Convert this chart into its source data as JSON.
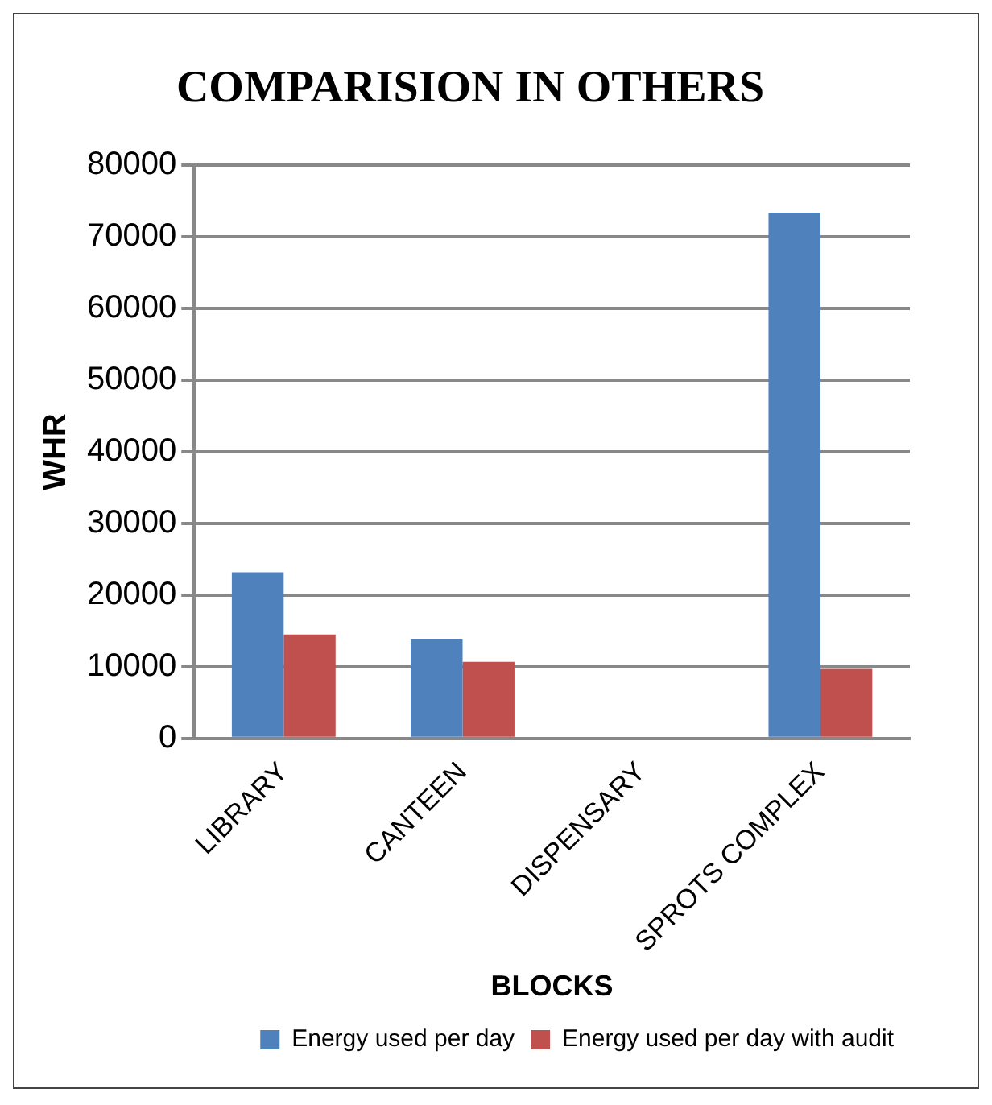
{
  "chart_data": {
    "type": "bar",
    "title": "COMPARISION IN OTHERS",
    "xlabel": "BLOCKS",
    "ylabel": "WHR",
    "categories": [
      "LIBRARY",
      "CANTEEN",
      "DISPENSARY",
      "SPROTS COMPLEX"
    ],
    "series": [
      {
        "name": "Energy used per day",
        "color": "#4f81bd",
        "values": [
          23200,
          13800,
          0,
          73400
        ]
      },
      {
        "name": "Energy used per day with audit",
        "color": "#c0504d",
        "values": [
          14500,
          10700,
          0,
          9700
        ]
      }
    ],
    "ylim": [
      0,
      80000
    ],
    "yticks": [
      0,
      10000,
      20000,
      30000,
      40000,
      50000,
      60000,
      70000,
      80000
    ],
    "grid": "y",
    "legend": "bottom right"
  }
}
